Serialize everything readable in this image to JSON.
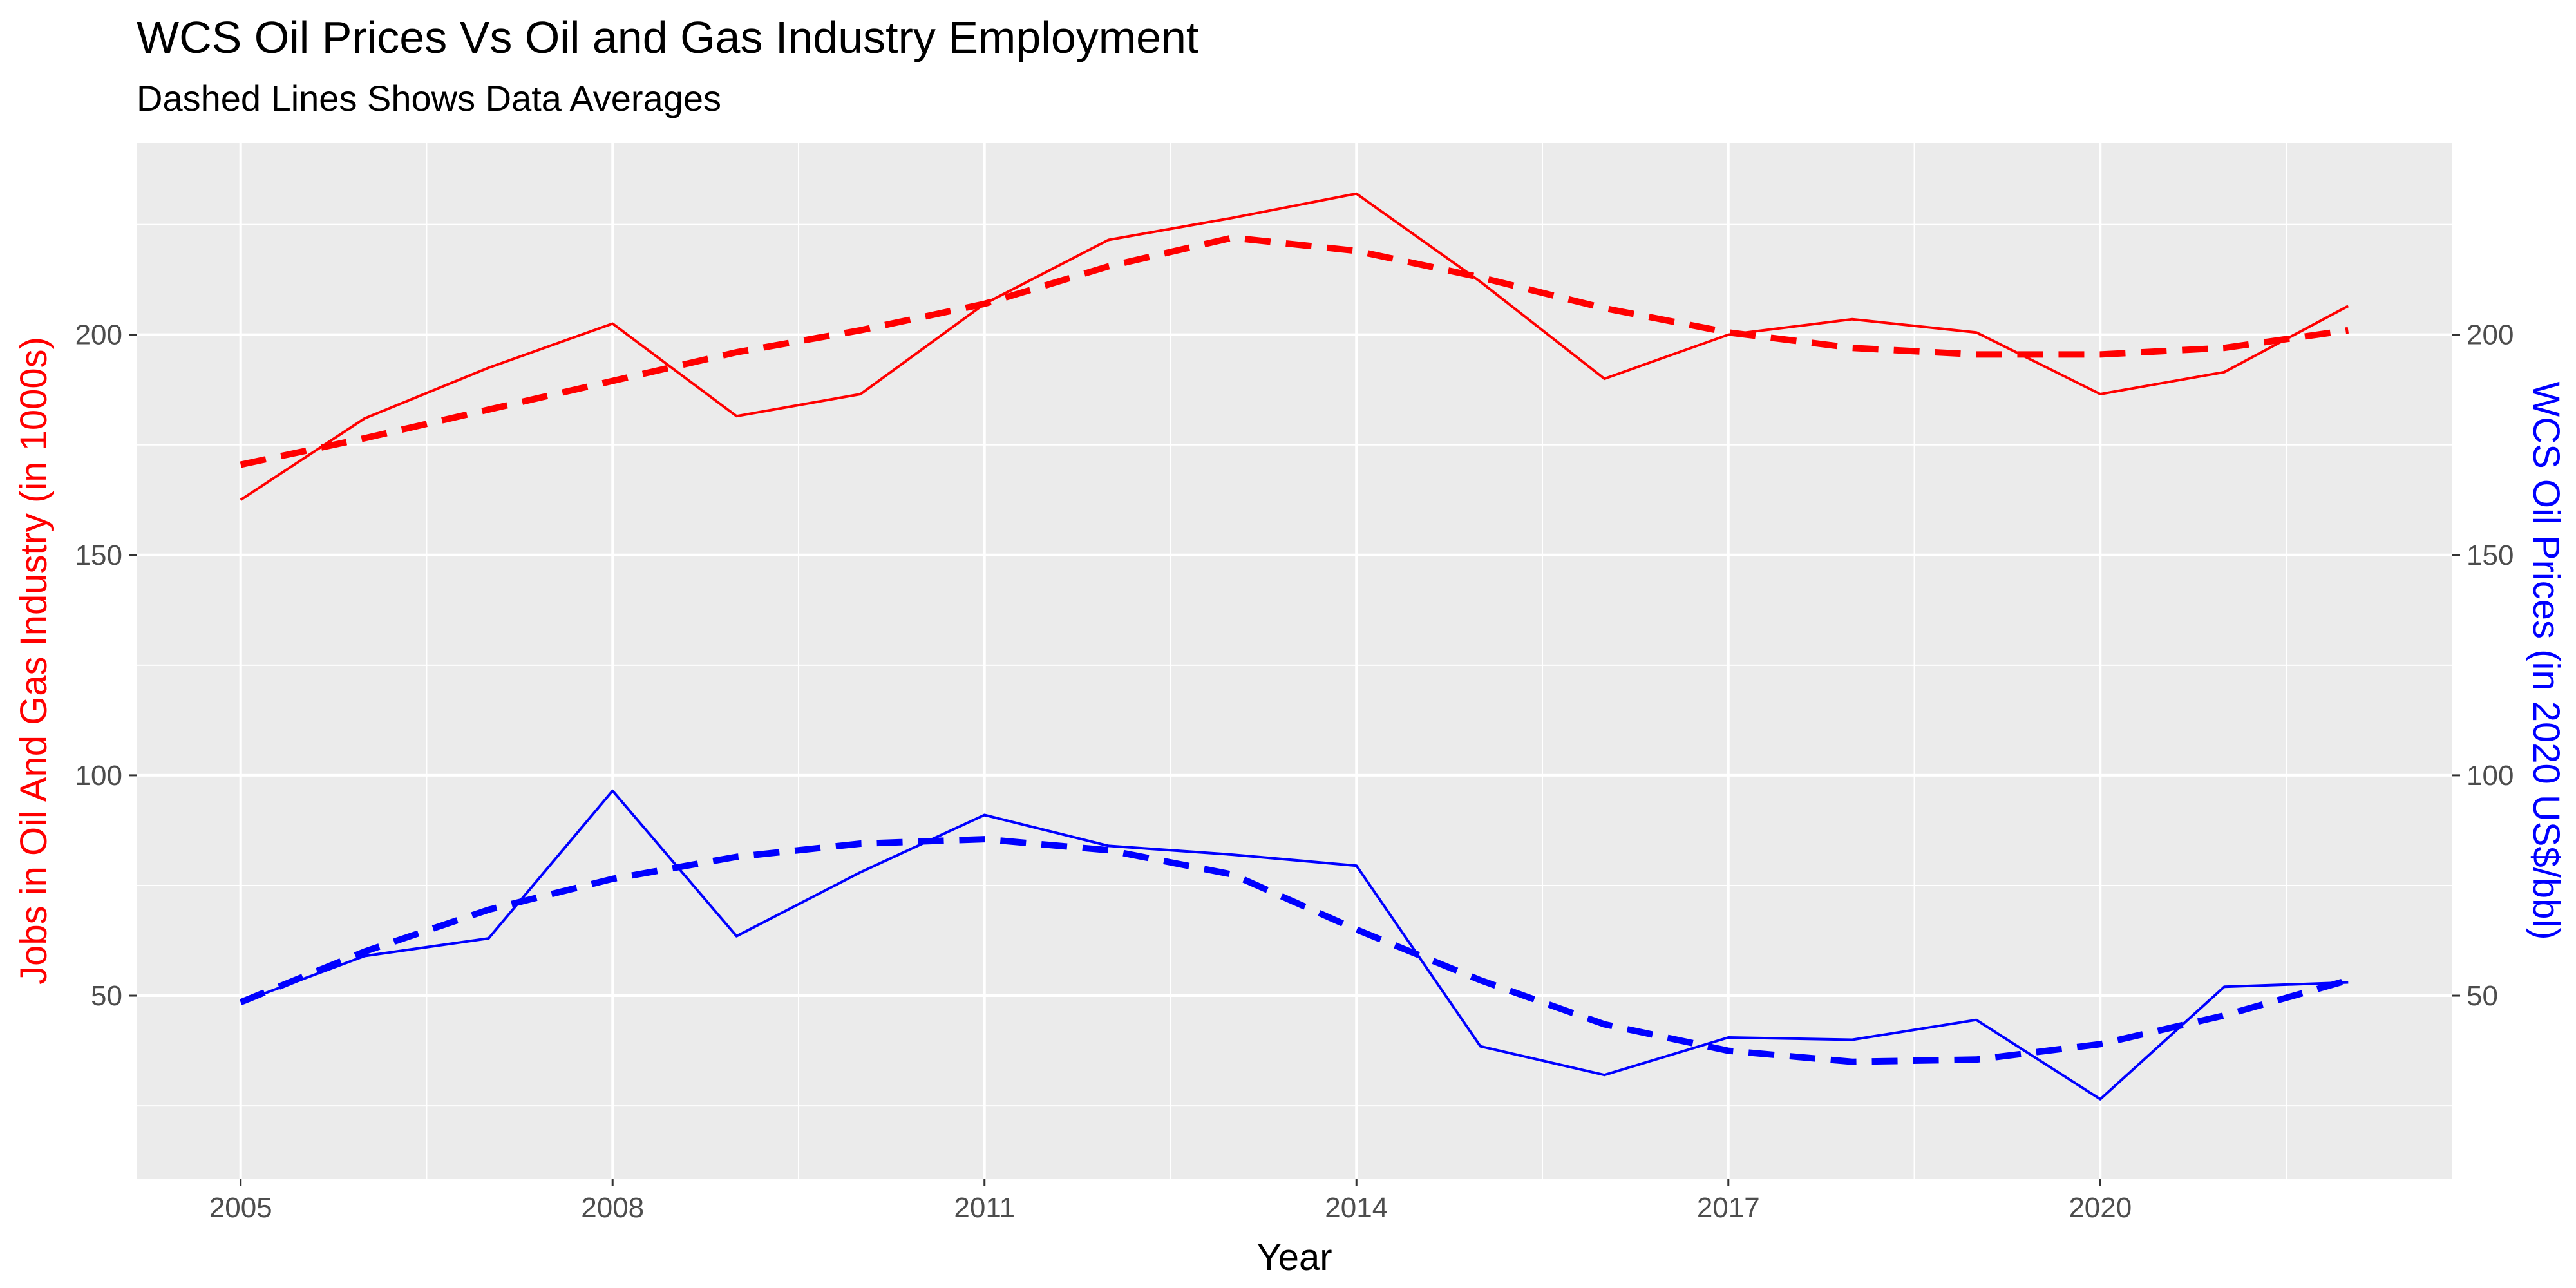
{
  "chart_data": {
    "type": "line",
    "title": "WCS Oil Prices Vs Oil and Gas Industry Employment",
    "subtitle": "Dashed Lines Shows Data Averages",
    "xlabel": "Year",
    "ylabel_left": "Jobs in Oil And Gas Industry (in 1000s)",
    "ylabel_right": "WCS Oil Prices (in 2020 US$/bbl)",
    "xlim": [
      2004.16,
      2022.84
    ],
    "ylim": [
      8.5,
      243.5
    ],
    "x_ticks": [
      2005,
      2008,
      2011,
      2014,
      2017,
      2020
    ],
    "y_ticks": [
      50,
      100,
      150,
      200
    ],
    "grid": true,
    "colors": {
      "jobs": "#ff0000",
      "oil": "#0000ff",
      "panel": "#ebebeb",
      "grid": "#ffffff"
    },
    "x": [
      2005,
      2006,
      2007,
      2008,
      2009,
      2010,
      2011,
      2012,
      2013,
      2014,
      2015,
      2016,
      2017,
      2018,
      2019,
      2020,
      2021,
      2022
    ],
    "series": [
      {
        "values": [
          162.5,
          181,
          192.5,
          202.5,
          181.5,
          186.5,
          207,
          221.5,
          226.5,
          232,
          212,
          190,
          200,
          203.5,
          200.5,
          186.5,
          191.5,
          206.5
        ],
        "style": "solid",
        "color_key": "jobs"
      },
      {
        "values": [
          170.5,
          176.5,
          183,
          189.5,
          196,
          201,
          207,
          215.5,
          222,
          219,
          213,
          206,
          200.5,
          197,
          195.5,
          195.5,
          197,
          201
        ],
        "style": "dashed",
        "color_key": "jobs"
      },
      {
        "values": [
          48.5,
          59,
          63,
          96.5,
          63.5,
          78,
          91,
          84,
          82,
          79.5,
          38.5,
          32,
          40.5,
          40,
          44.5,
          26.5,
          52,
          53
        ],
        "style": "solid",
        "color_key": "oil"
      },
      {
        "values": [
          48.5,
          60,
          69.5,
          76.5,
          81.5,
          84.5,
          85.5,
          83,
          77.5,
          65,
          53.5,
          43.5,
          37.5,
          35,
          35.5,
          39,
          45.5,
          53.5
        ],
        "style": "dashed",
        "color_key": "oil"
      }
    ]
  }
}
